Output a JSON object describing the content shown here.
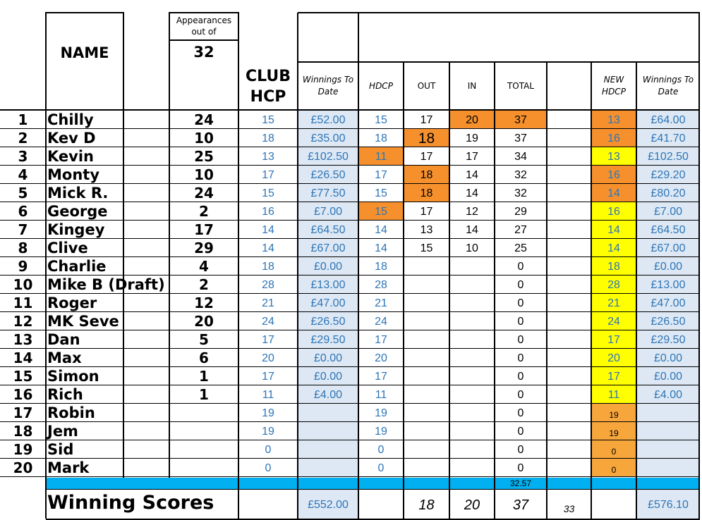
{
  "headers": {
    "name": "NAME",
    "appearances_line1": "Appearances",
    "appearances_line2": "out of",
    "appearances_total": "32",
    "club_hcp_line1": "CLUB",
    "club_hcp_line2": "HCP",
    "winnings_line1": "Winnings To",
    "winnings_line2": "Date",
    "hdcp": "HDCP",
    "out": "OUT",
    "in": "IN",
    "total": "TOTAL",
    "new_hdcp_line1": "NEW",
    "new_hdcp_line2": "HDCP",
    "winnings2_line1": "Winnings To",
    "winnings2_line2": "Date"
  },
  "colors": {
    "light_blue_fill": "#dde8f4",
    "orange_fill": "#f5902d",
    "yellow_fill": "#ffff00",
    "light_orange_fill": "#f7a63c",
    "cyan_band": "#00b0f0",
    "blue_text": "#2e75b6"
  },
  "rows": [
    {
      "rank": "1",
      "name": "Chilly",
      "apps": "24",
      "club_hcp": "15",
      "winnings": "£52.00",
      "hdcp": "15",
      "out": "17",
      "in": "20",
      "total": "37",
      "new_hdcp": "13",
      "winnings2": "£64.00"
    },
    {
      "rank": "2",
      "name": "Kev D",
      "apps": "10",
      "club_hcp": "18",
      "winnings": "£35.00",
      "hdcp": "18",
      "out": "18",
      "in": "19",
      "total": "37",
      "new_hdcp": "16",
      "winnings2": "£41.70"
    },
    {
      "rank": "3",
      "name": "Kevin",
      "apps": "25",
      "club_hcp": "13",
      "winnings": "£102.50",
      "hdcp": "11",
      "out": "17",
      "in": "17",
      "total": "34",
      "new_hdcp": "13",
      "winnings2": "£102.50"
    },
    {
      "rank": "4",
      "name": "Monty",
      "apps": "10",
      "club_hcp": "17",
      "winnings": "£26.50",
      "hdcp": "17",
      "out": "18",
      "in": "14",
      "total": "32",
      "new_hdcp": "16",
      "winnings2": "£29.20"
    },
    {
      "rank": "5",
      "name": "Mick R.",
      "apps": "24",
      "club_hcp": "15",
      "winnings": "£77.50",
      "hdcp": "15",
      "out": "18",
      "in": "14",
      "total": "32",
      "new_hdcp": "14",
      "winnings2": "£80.20"
    },
    {
      "rank": "6",
      "name": "George",
      "apps": "2",
      "club_hcp": "16",
      "winnings": "£7.00",
      "hdcp": "15",
      "out": "17",
      "in": "12",
      "total": "29",
      "new_hdcp": "16",
      "winnings2": "£7.00"
    },
    {
      "rank": "7",
      "name": "Kingey",
      "apps": "17",
      "club_hcp": "14",
      "winnings": "£64.50",
      "hdcp": "14",
      "out": "13",
      "in": "14",
      "total": "27",
      "new_hdcp": "14",
      "winnings2": "£64.50"
    },
    {
      "rank": "8",
      "name": "Clive",
      "apps": "29",
      "club_hcp": "14",
      "winnings": "£67.00",
      "hdcp": "14",
      "out": "15",
      "in": "10",
      "total": "25",
      "new_hdcp": "14",
      "winnings2": "£67.00"
    },
    {
      "rank": "9",
      "name": "Charlie",
      "apps": "4",
      "club_hcp": "18",
      "winnings": "£0.00",
      "hdcp": "18",
      "out": "",
      "in": "",
      "total": "0",
      "new_hdcp": "18",
      "winnings2": "£0.00"
    },
    {
      "rank": "10",
      "name": "Mike B (Draft)",
      "apps": "2",
      "club_hcp": "28",
      "winnings": "£13.00",
      "hdcp": "28",
      "out": "",
      "in": "",
      "total": "0",
      "new_hdcp": "28",
      "winnings2": "£13.00"
    },
    {
      "rank": "11",
      "name": "Roger",
      "apps": "12",
      "club_hcp": "21",
      "winnings": "£47.00",
      "hdcp": "21",
      "out": "",
      "in": "",
      "total": "0",
      "new_hdcp": "21",
      "winnings2": "£47.00"
    },
    {
      "rank": "12",
      "name": "MK Seve",
      "apps": "20",
      "club_hcp": "24",
      "winnings": "£26.50",
      "hdcp": "24",
      "out": "",
      "in": "",
      "total": "0",
      "new_hdcp": "24",
      "winnings2": "£26.50"
    },
    {
      "rank": "13",
      "name": "Dan",
      "apps": "5",
      "club_hcp": "17",
      "winnings": "£29.50",
      "hdcp": "17",
      "out": "",
      "in": "",
      "total": "0",
      "new_hdcp": "17",
      "winnings2": "£29.50"
    },
    {
      "rank": "14",
      "name": "Max",
      "apps": "6",
      "club_hcp": "20",
      "winnings": "£0.00",
      "hdcp": "20",
      "out": "",
      "in": "",
      "total": "0",
      "new_hdcp": "20",
      "winnings2": "£0.00"
    },
    {
      "rank": "15",
      "name": "Simon",
      "apps": "1",
      "club_hcp": "17",
      "winnings": "£0.00",
      "hdcp": "17",
      "out": "",
      "in": "",
      "total": "0",
      "new_hdcp": "17",
      "winnings2": "£0.00"
    },
    {
      "rank": "16",
      "name": "Rich",
      "apps": "1",
      "club_hcp": "11",
      "winnings": "£4.00",
      "hdcp": "11",
      "out": "",
      "in": "",
      "total": "0",
      "new_hdcp": "11",
      "winnings2": "£4.00"
    },
    {
      "rank": "17",
      "name": "Robin",
      "apps": "",
      "club_hcp": "19",
      "winnings": "",
      "hdcp": "19",
      "out": "",
      "in": "",
      "total": "0",
      "new_hdcp": "19",
      "winnings2": ""
    },
    {
      "rank": "18",
      "name": "Jem",
      "apps": "",
      "club_hcp": "19",
      "winnings": "",
      "hdcp": "19",
      "out": "",
      "in": "",
      "total": "0",
      "new_hdcp": "19",
      "winnings2": ""
    },
    {
      "rank": "19",
      "name": "Sid",
      "apps": "",
      "club_hcp": "0",
      "winnings": "",
      "hdcp": "0",
      "out": "",
      "in": "",
      "total": "0",
      "new_hdcp": "0",
      "winnings2": ""
    },
    {
      "rank": "20",
      "name": "Mark",
      "apps": "",
      "club_hcp": "0",
      "winnings": "",
      "hdcp": "0",
      "out": "",
      "in": "",
      "total": "0",
      "new_hdcp": "0",
      "winnings2": ""
    }
  ],
  "highlights": {
    "in_orange_rows": [
      0
    ],
    "total_orange_rows": [
      0
    ],
    "out_orange_rows": [
      1,
      3,
      4
    ],
    "hdcp_orange_rows": [
      2,
      5
    ],
    "new_hdcp_orange_rows": [
      0,
      1,
      3,
      4
    ],
    "new_hdcp_light_orange_rows": [
      16,
      17,
      18,
      19
    ],
    "new_hdcp_yellow_rows": [
      2,
      5,
      6,
      7,
      8,
      9,
      10,
      11,
      12,
      13,
      14,
      15
    ]
  },
  "band": {
    "total_value": "32.57"
  },
  "footer": {
    "label": "Winning Scores",
    "winnings": "£552.00",
    "out": "18",
    "in": "20",
    "total": "37",
    "extra": "33",
    "winnings2": "£576.10"
  }
}
